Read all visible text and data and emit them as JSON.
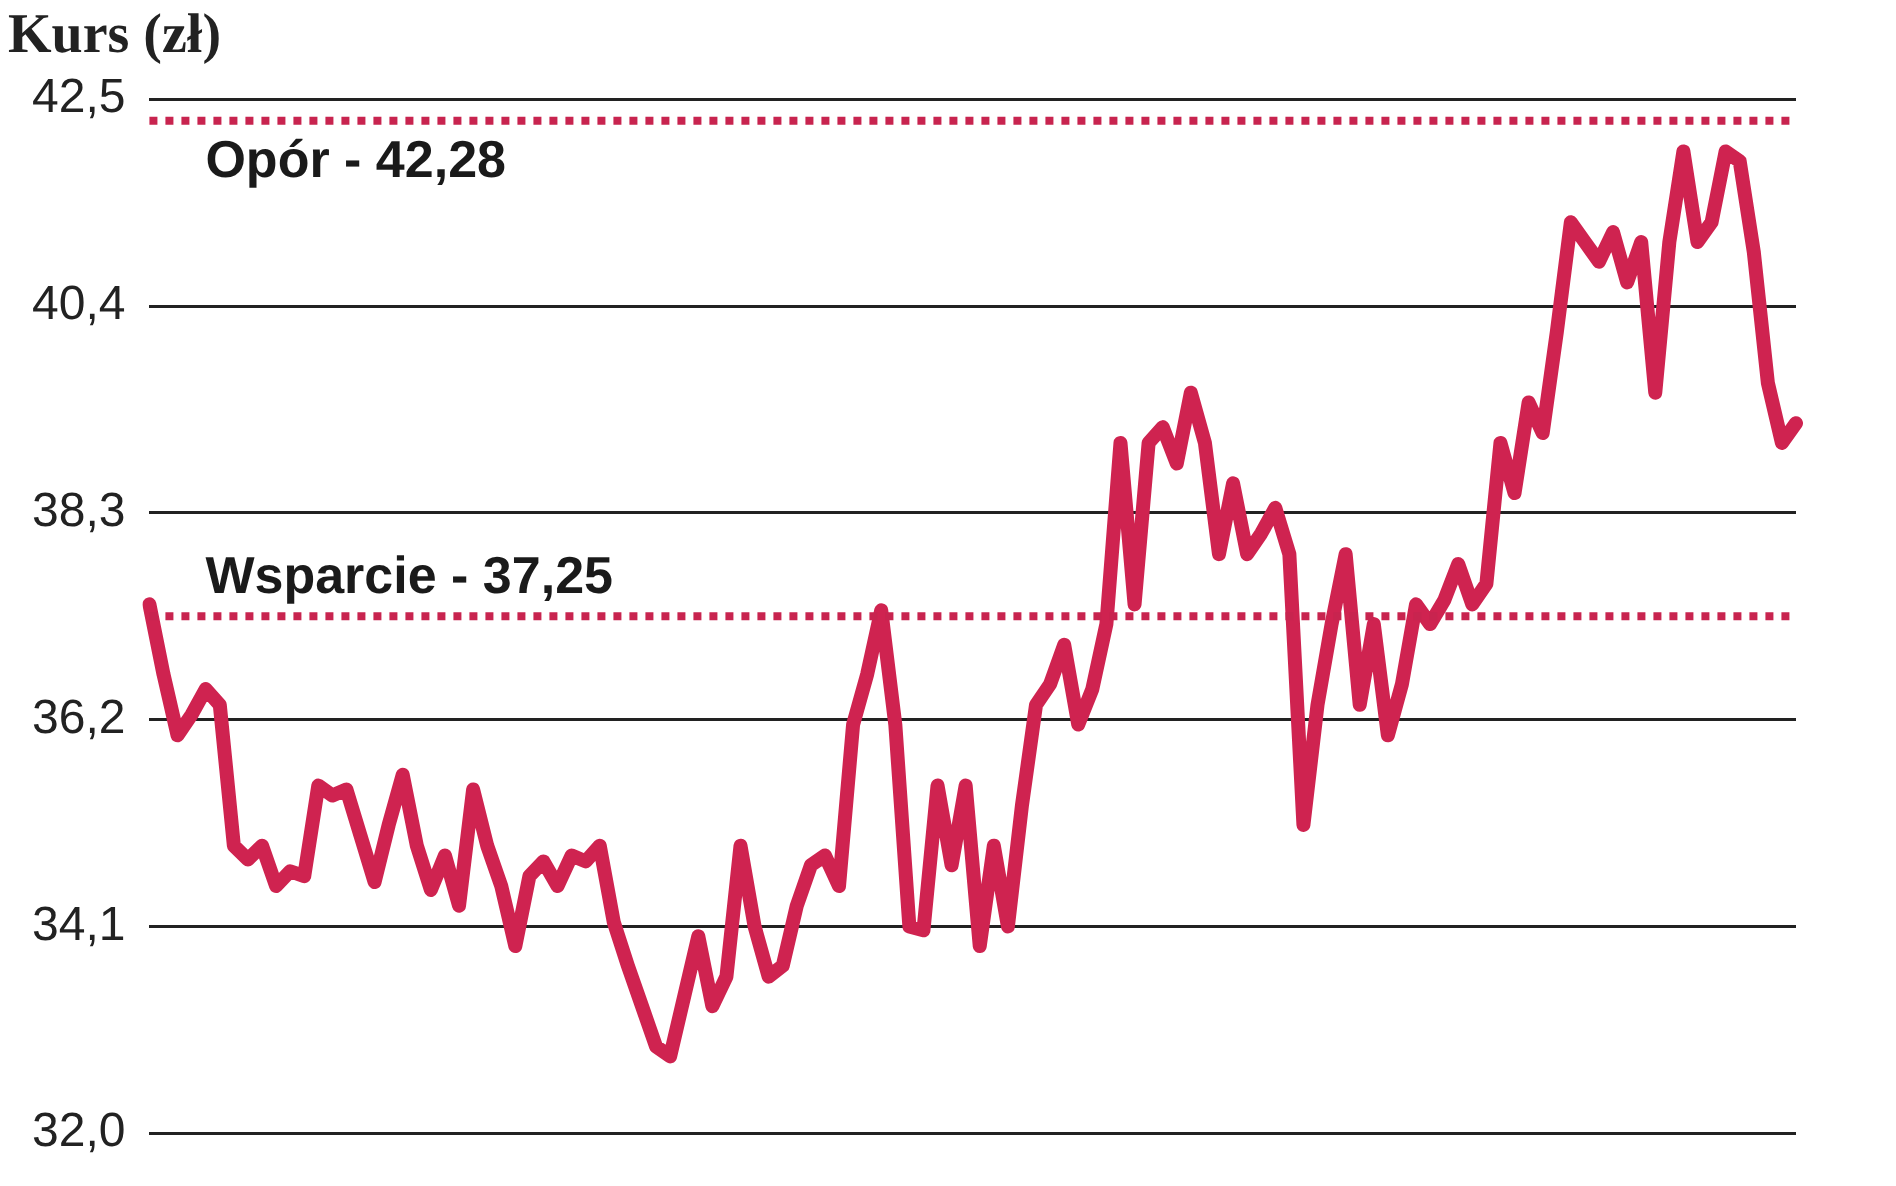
{
  "chart_data": {
    "type": "line",
    "title": "Kurs (zł)",
    "categories": [
      null,
      null,
      null,
      null,
      null,
      null,
      null,
      null,
      null,
      null,
      null,
      null,
      null,
      null,
      null,
      null,
      null,
      null,
      null,
      null,
      null,
      null,
      null,
      null,
      null,
      null,
      null,
      null,
      null,
      null,
      null,
      null,
      null,
      null,
      null,
      null,
      null,
      null,
      null,
      null,
      null,
      null,
      null,
      null,
      null,
      null,
      null,
      null,
      null,
      null,
      null,
      null,
      null,
      null,
      null,
      null,
      null,
      null,
      null,
      null,
      null,
      null,
      null,
      null,
      null,
      null,
      null,
      null,
      null,
      null,
      null,
      null,
      null,
      null,
      null,
      null,
      null,
      null,
      null,
      null,
      null,
      null,
      null,
      null,
      null,
      null,
      null,
      null,
      null,
      null,
      null,
      null,
      null,
      null,
      null,
      null,
      null,
      null,
      null,
      null,
      null,
      null,
      null,
      null,
      null,
      null,
      null,
      null,
      null,
      null,
      null,
      null,
      null,
      null,
      null,
      null,
      null,
      null
    ],
    "series": [
      {
        "color": "#cf2350",
        "values": [
          37.37,
          36.66,
          36.04,
          36.25,
          36.51,
          36.35,
          34.92,
          34.78,
          34.92,
          34.51,
          34.66,
          34.61,
          35.53,
          35.43,
          35.49,
          35.02,
          34.55,
          35.13,
          35.64,
          34.92,
          34.47,
          34.82,
          34.31,
          35.49,
          34.92,
          34.51,
          33.9,
          34.61,
          34.76,
          34.51,
          34.82,
          34.76,
          34.92,
          34.14,
          33.7,
          33.29,
          32.88,
          32.78,
          33.39,
          34.0,
          33.29,
          33.59,
          34.92,
          34.1,
          33.59,
          33.7,
          34.31,
          34.72,
          34.82,
          34.51,
          36.15,
          36.66,
          37.31,
          36.15,
          34.1,
          34.06,
          35.53,
          34.72,
          35.53,
          33.9,
          34.92,
          34.1,
          35.33,
          36.35,
          36.56,
          36.96,
          36.15,
          36.51,
          37.17,
          39.01,
          37.37,
          39.01,
          39.17,
          38.8,
          39.52,
          39.01,
          37.88,
          38.6,
          37.88,
          38.09,
          38.35,
          37.88,
          35.13,
          36.35,
          37.17,
          37.88,
          36.35,
          37.17,
          36.04,
          36.56,
          37.37,
          37.17,
          37.41,
          37.78,
          37.37,
          37.58,
          39.01,
          38.5,
          39.42,
          39.11,
          40.13,
          41.25,
          41.05,
          40.85,
          41.15,
          40.64,
          41.05,
          39.52,
          41.05,
          41.97,
          41.05,
          41.25,
          41.97,
          41.87,
          40.95,
          39.62,
          39.01,
          39.21
        ]
      }
    ],
    "ylim": [
      32.0,
      42.5
    ],
    "yticks": [
      {
        "value": 32.0,
        "label": "32,0"
      },
      {
        "value": 34.1,
        "label": "34,1"
      },
      {
        "value": 36.2,
        "label": "36,2"
      },
      {
        "value": 38.3,
        "label": "38,3"
      },
      {
        "value": 40.4,
        "label": "40,4"
      },
      {
        "value": 42.5,
        "label": "42,5"
      }
    ],
    "grid": "y",
    "tick_labels": "y",
    "legend": false,
    "marker": "none",
    "line_style": "solid",
    "ref_lines": [
      {
        "axis": "y",
        "value": 42.28,
        "label": "Opór - 42,28",
        "color": "#c8244f",
        "line_style": "dotted"
      },
      {
        "axis": "y",
        "value": 37.25,
        "label": "Wsparcie - 37,25",
        "color": "#c8244f",
        "line_style": "dotted"
      }
    ]
  }
}
